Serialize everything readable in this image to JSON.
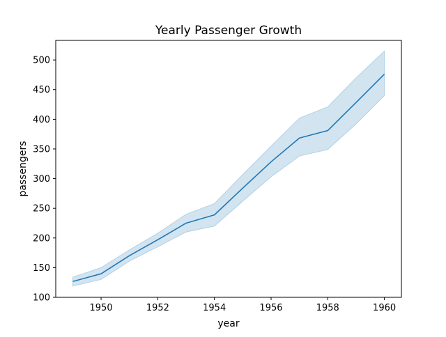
{
  "chart_data": {
    "type": "line",
    "title": "Yearly Passenger Growth",
    "xlabel": "year",
    "ylabel": "passengers",
    "xlim": [
      1948.4,
      1960.6
    ],
    "ylim": [
      100,
      533
    ],
    "xticks": [
      1950,
      1952,
      1954,
      1956,
      1958,
      1960
    ],
    "yticks": [
      100,
      150,
      200,
      250,
      300,
      350,
      400,
      450,
      500
    ],
    "grid": false,
    "legend": "none",
    "x": [
      1949,
      1950,
      1951,
      1952,
      1953,
      1954,
      1955,
      1956,
      1957,
      1958,
      1959,
      1960
    ],
    "series": [
      {
        "name": "passengers",
        "color": "#1f77b4",
        "band_color": "#1f77b4",
        "values": [
          126.7,
          139.7,
          170.2,
          197.0,
          225.0,
          238.9,
          284.0,
          328.3,
          368.4,
          381.0,
          428.3,
          476.2
        ],
        "ci_low": [
          119,
          130,
          161,
          185,
          210,
          220,
          262,
          303,
          338,
          349,
          392,
          440
        ],
        "ci_high": [
          134,
          150,
          180,
          208,
          240,
          258,
          307,
          355,
          402,
          421,
          470,
          515
        ]
      }
    ]
  }
}
